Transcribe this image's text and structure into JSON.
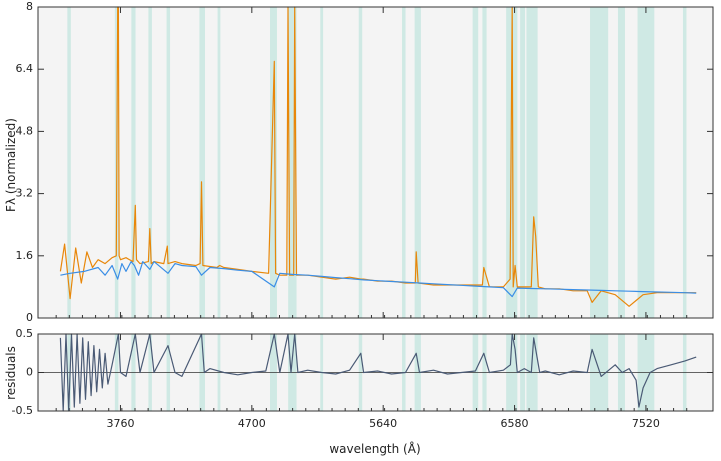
{
  "chart_data": [
    {
      "type": "line",
      "panel": "spectrum",
      "xlabel": "",
      "ylabel": "Fλ (normalized)",
      "xlim": [
        3170,
        8000
      ],
      "ylim": [
        0,
        8
      ],
      "yticks": [
        0,
        1.6,
        3.2,
        4.8,
        6.4,
        8
      ],
      "ytick_labels": [
        "0",
        "1.6",
        "3.2",
        "4.8",
        "6.4",
        "8"
      ],
      "xticks": [
        3760,
        4700,
        5640,
        6580,
        7520
      ],
      "colors": {
        "observed": "#e8870a",
        "model": "#3a8ee6",
        "mask": "#cfe9e4",
        "background": "#f4f4f4"
      },
      "masked_ranges": [
        [
          3380,
          3405
        ],
        [
          3720,
          3745
        ],
        [
          3838,
          3868
        ],
        [
          3960,
          3985
        ],
        [
          4090,
          4115
        ],
        [
          4325,
          4365
        ],
        [
          4455,
          4475
        ],
        [
          4830,
          4880
        ],
        [
          4960,
          5020
        ],
        [
          5190,
          5210
        ],
        [
          5465,
          5490
        ],
        [
          5775,
          5800
        ],
        [
          5865,
          5910
        ],
        [
          6280,
          6320
        ],
        [
          6350,
          6380
        ],
        [
          6520,
          6600
        ],
        [
          6620,
          6655
        ],
        [
          6665,
          6745
        ],
        [
          7120,
          7250
        ],
        [
          7320,
          7370
        ],
        [
          7460,
          7580
        ],
        [
          7785,
          7810
        ]
      ],
      "series": [
        {
          "role": "observed",
          "x": [
            3330,
            3360,
            3400,
            3440,
            3480,
            3520,
            3560,
            3600,
            3650,
            3700,
            3730,
            3740,
            3745,
            3750,
            3760,
            3800,
            3850,
            3866,
            3875,
            3900,
            3960,
            3970,
            3980,
            4000,
            4070,
            4095,
            4100,
            4150,
            4200,
            4300,
            4330,
            4340,
            4350,
            4450,
            4470,
            4500,
            4600,
            4700,
            4820,
            4861,
            4870,
            4900,
            4950,
            4959,
            4970,
            5000,
            5007,
            5020,
            5100,
            5200,
            5300,
            5400,
            5480,
            5500,
            5600,
            5700,
            5800,
            5870,
            5876,
            5890,
            6000,
            6100,
            6200,
            6300,
            6350,
            6360,
            6400,
            6500,
            6548,
            6563,
            6570,
            6584,
            6600,
            6650,
            6700,
            6717,
            6731,
            6750,
            6800,
            6900,
            7000,
            7100,
            7135,
            7200,
            7300,
            7400,
            7450,
            7500,
            7600,
            7700,
            7800,
            7880
          ],
          "y": [
            1.2,
            1.9,
            0.5,
            1.8,
            0.9,
            1.7,
            1.3,
            1.5,
            1.4,
            1.55,
            1.6,
            8.0,
            8.0,
            1.6,
            1.5,
            1.55,
            1.45,
            2.9,
            1.5,
            1.4,
            1.45,
            2.3,
            1.4,
            1.45,
            1.4,
            1.85,
            1.4,
            1.45,
            1.4,
            1.35,
            1.4,
            3.5,
            1.35,
            1.3,
            1.35,
            1.3,
            1.25,
            1.2,
            1.15,
            6.6,
            1.15,
            1.1,
            1.1,
            8.0,
            1.1,
            1.1,
            8.0,
            1.1,
            1.1,
            1.05,
            1.0,
            1.05,
            1.0,
            1.0,
            0.95,
            0.95,
            0.9,
            0.9,
            1.7,
            0.9,
            0.85,
            0.85,
            0.85,
            0.85,
            0.85,
            1.3,
            0.8,
            0.8,
            1.0,
            8.0,
            0.8,
            1.35,
            0.8,
            0.8,
            0.8,
            2.6,
            2.1,
            0.8,
            0.75,
            0.75,
            0.7,
            0.7,
            0.4,
            0.7,
            0.6,
            0.3,
            0.45,
            0.6,
            0.65,
            0.65,
            0.65,
            0.65
          ]
        },
        {
          "role": "model",
          "x": [
            3330,
            3400,
            3500,
            3600,
            3650,
            3700,
            3740,
            3770,
            3800,
            3836,
            3860,
            3890,
            3920,
            3970,
            4000,
            4100,
            4150,
            4200,
            4300,
            4340,
            4400,
            4500,
            4600,
            4700,
            4861,
            4900,
            5000,
            5100,
            5200,
            5300,
            5400,
            5500,
            5600,
            5700,
            5800,
            5900,
            6000,
            6100,
            6200,
            6300,
            6400,
            6500,
            6563,
            6600,
            6700,
            6800,
            6900,
            7000,
            7100,
            7200,
            7300,
            7400,
            7500,
            7600,
            7700,
            7800,
            7880
          ],
          "y": [
            1.1,
            1.15,
            1.2,
            1.3,
            1.1,
            1.35,
            1.0,
            1.4,
            1.2,
            1.45,
            1.35,
            1.1,
            1.45,
            1.25,
            1.45,
            1.15,
            1.4,
            1.35,
            1.32,
            1.1,
            1.3,
            1.27,
            1.23,
            1.2,
            0.8,
            1.15,
            1.12,
            1.1,
            1.07,
            1.04,
            1.01,
            0.98,
            0.96,
            0.94,
            0.92,
            0.9,
            0.88,
            0.86,
            0.84,
            0.82,
            0.8,
            0.78,
            0.55,
            0.77,
            0.76,
            0.75,
            0.74,
            0.73,
            0.72,
            0.71,
            0.7,
            0.69,
            0.68,
            0.67,
            0.66,
            0.65,
            0.64
          ]
        }
      ]
    },
    {
      "type": "line",
      "panel": "residuals",
      "xlabel": "wavelength (Å)",
      "ylabel": "residuals",
      "xlim": [
        3170,
        8000
      ],
      "ylim": [
        -0.5,
        0.5
      ],
      "yticks": [
        -0.5,
        0,
        0.5
      ],
      "ytick_labels": [
        "-0.5",
        "0",
        "0.5"
      ],
      "xticks": [
        3760,
        4700,
        5640,
        6580,
        7520
      ],
      "xtick_labels": [
        "3760",
        "4700",
        "5640",
        "6580",
        "7520"
      ],
      "zero_line": true,
      "colors": {
        "residual": "#4a5a75"
      },
      "series": [
        {
          "role": "residual",
          "x": [
            3330,
            3350,
            3370,
            3390,
            3410,
            3430,
            3450,
            3470,
            3490,
            3510,
            3530,
            3550,
            3570,
            3590,
            3610,
            3630,
            3650,
            3670,
            3700,
            3745,
            3760,
            3800,
            3866,
            3900,
            3970,
            4000,
            4100,
            4150,
            4200,
            4340,
            4360,
            4400,
            4500,
            4600,
            4700,
            4800,
            4861,
            4900,
            4959,
            4980,
            5007,
            5030,
            5100,
            5200,
            5300,
            5400,
            5480,
            5500,
            5600,
            5700,
            5800,
            5876,
            5900,
            6000,
            6100,
            6200,
            6300,
            6360,
            6400,
            6500,
            6550,
            6563,
            6584,
            6600,
            6650,
            6700,
            6717,
            6731,
            6760,
            6800,
            6900,
            7000,
            7100,
            7135,
            7200,
            7300,
            7350,
            7400,
            7450,
            7470,
            7500,
            7550,
            7600,
            7700,
            7800,
            7880
          ],
          "y": [
            0.45,
            -0.5,
            0.5,
            -0.5,
            0.5,
            -0.45,
            0.5,
            -0.4,
            0.45,
            -0.35,
            0.4,
            -0.3,
            0.35,
            -0.25,
            0.3,
            -0.2,
            0.25,
            -0.15,
            0.1,
            0.5,
            0.0,
            -0.05,
            0.5,
            0.0,
            0.5,
            0.0,
            0.35,
            0.0,
            -0.05,
            0.5,
            0.0,
            0.05,
            0.0,
            -0.03,
            0.0,
            0.02,
            0.5,
            0.0,
            0.5,
            0.0,
            0.5,
            0.0,
            0.03,
            0.0,
            -0.02,
            0.03,
            0.25,
            0.0,
            0.02,
            -0.02,
            0.0,
            0.25,
            0.0,
            0.03,
            -0.02,
            0.0,
            0.02,
            0.25,
            0.0,
            0.03,
            0.1,
            0.5,
            0.3,
            0.0,
            0.05,
            0.0,
            0.45,
            0.3,
            0.0,
            0.02,
            -0.03,
            0.02,
            0.0,
            0.3,
            -0.05,
            0.1,
            0.0,
            0.05,
            -0.1,
            -0.45,
            -0.2,
            0.0,
            0.05,
            0.1,
            0.15,
            0.2
          ]
        }
      ]
    }
  ]
}
